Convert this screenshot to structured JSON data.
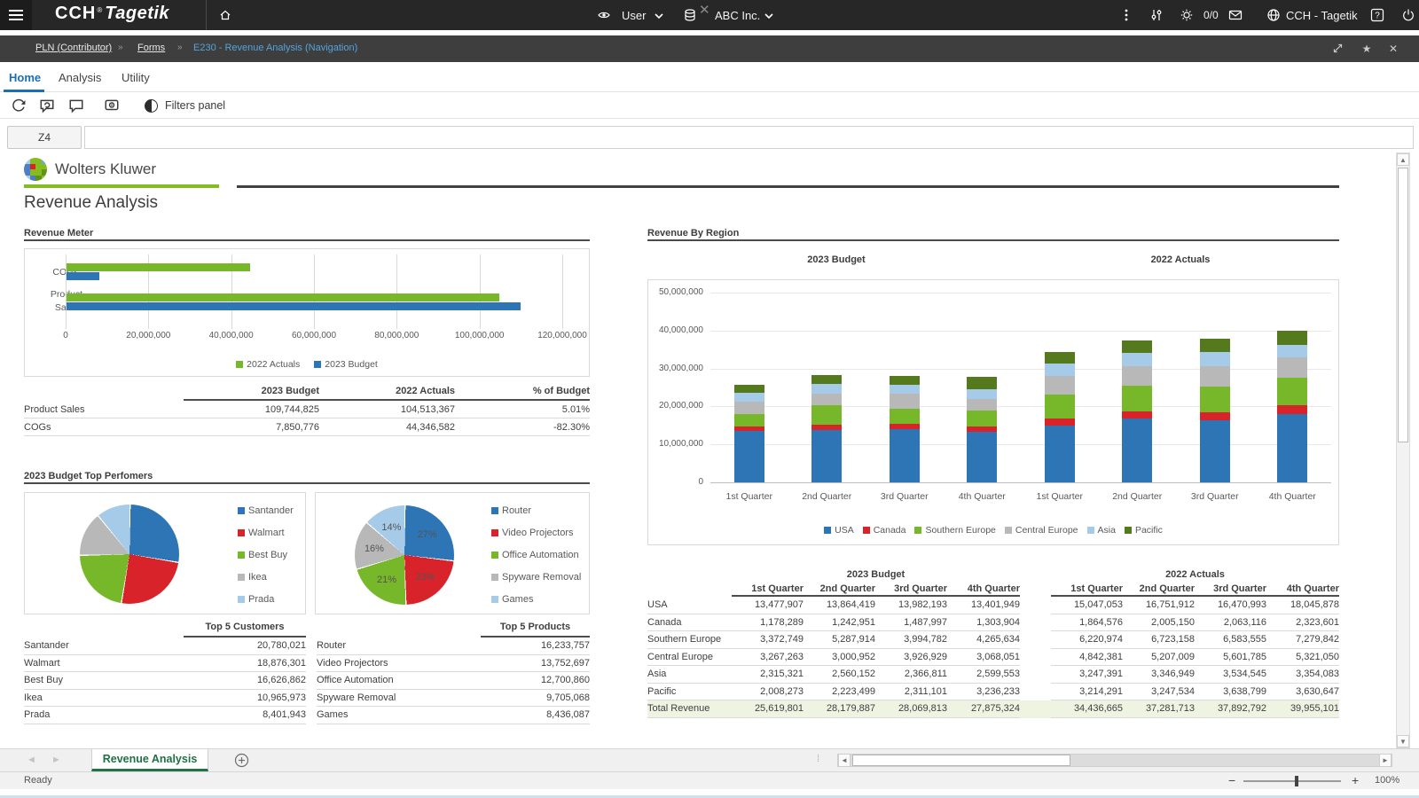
{
  "topbar": {
    "logo_cch": "CCH",
    "logo_reg": "®",
    "logo_tagetik": "Tagetik",
    "user_label": "User",
    "company_label": "ABC Inc.",
    "inbox_count": "0/0",
    "product_label": "CCH - Tagetik"
  },
  "breadcrumb": {
    "items": [
      "PLN (Contributor)",
      "Forms",
      "E230 - Revenue Analysis (Navigation)"
    ]
  },
  "tabs": [
    {
      "label": "Home",
      "active": true
    },
    {
      "label": "Analysis",
      "active": false
    },
    {
      "label": "Utility",
      "active": false
    }
  ],
  "toolbar": {
    "filters_label": "Filters panel"
  },
  "cell_ref": "Z4",
  "formula_value": "",
  "colors": {
    "accent_blue": "#1a6fb5",
    "link_blue": "#54a3dd",
    "brand_green": "#85bc20",
    "sheet_tab_green": "#217346",
    "total_row_bg": "#eef3e2"
  },
  "report": {
    "brand": "Wolters Kluwer",
    "title": "Revenue Analysis",
    "sections": {
      "revenue_meter": "Revenue Meter",
      "top_performers": "2023 Budget Top Perfomers",
      "revenue_by_region": "Revenue By Region"
    }
  },
  "meter_table": {
    "headers": [
      "2023 Budget",
      "2022 Actuals",
      "% of Budget"
    ],
    "rows": [
      {
        "label": "Product Sales",
        "values": [
          "109,744,825",
          "104,513,367",
          "5.01%"
        ]
      },
      {
        "label": "COGs",
        "values": [
          "7,850,776",
          "44,346,582",
          "-82.30%"
        ]
      }
    ]
  },
  "customers_table": {
    "header": "Top 5 Customers",
    "rows": [
      [
        "Santander",
        "20,780,021"
      ],
      [
        "Walmart",
        "18,876,301"
      ],
      [
        "Best Buy",
        "16,626,862"
      ],
      [
        "Ikea",
        "10,965,973"
      ],
      [
        "Prada",
        "8,401,943"
      ]
    ]
  },
  "products_table": {
    "header": "Top 5 Products",
    "rows": [
      [
        "Router",
        "16,233,757"
      ],
      [
        "Video Projectors",
        "13,752,697"
      ],
      [
        "Office Automation",
        "12,700,860"
      ],
      [
        "Spyware Removal",
        "9,705,068"
      ],
      [
        "Games",
        "8,436,087"
      ]
    ]
  },
  "region_table": {
    "group_headers": [
      "2023 Budget",
      "2022 Actuals"
    ],
    "quarter_headers": [
      "1st Quarter",
      "2nd Quarter",
      "3rd Quarter",
      "4th Quarter"
    ],
    "rows": [
      {
        "label": "USA",
        "budget": [
          "13,477,907",
          "13,864,419",
          "13,982,193",
          "13,401,949"
        ],
        "actuals": [
          "15,047,053",
          "16,751,912",
          "16,470,993",
          "18,045,878"
        ],
        "total": false
      },
      {
        "label": "Canada",
        "budget": [
          "1,178,289",
          "1,242,951",
          "1,487,997",
          "1,303,904"
        ],
        "actuals": [
          "1,864,576",
          "2,005,150",
          "2,063,116",
          "2,323,601"
        ],
        "total": false
      },
      {
        "label": "Southern Europe",
        "budget": [
          "3,372,749",
          "5,287,914",
          "3,994,782",
          "4,265,634"
        ],
        "actuals": [
          "6,220,974",
          "6,723,158",
          "6,583,555",
          "7,279,842"
        ],
        "total": false
      },
      {
        "label": "Central Europe",
        "budget": [
          "3,267,263",
          "3,000,952",
          "3,926,929",
          "3,068,051"
        ],
        "actuals": [
          "4,842,381",
          "5,207,009",
          "5,601,785",
          "5,321,050"
        ],
        "total": false
      },
      {
        "label": "Asia",
        "budget": [
          "2,315,321",
          "2,560,152",
          "2,366,811",
          "2,599,553"
        ],
        "actuals": [
          "3,247,391",
          "3,346,949",
          "3,534,545",
          "3,354,083"
        ],
        "total": false
      },
      {
        "label": "Pacific",
        "budget": [
          "2,008,273",
          "2,223,499",
          "2,311,101",
          "3,236,233"
        ],
        "actuals": [
          "3,214,291",
          "3,247,534",
          "3,638,799",
          "3,630,647"
        ],
        "total": false
      },
      {
        "label": "Total Revenue",
        "budget": [
          "25,619,801",
          "28,179,887",
          "28,069,813",
          "27,875,324"
        ],
        "actuals": [
          "34,436,665",
          "37,281,713",
          "37,892,792",
          "39,955,101"
        ],
        "total": true
      }
    ]
  },
  "chart_data": [
    {
      "id": "revenue_meter",
      "type": "bar",
      "orientation": "horizontal",
      "title": "Revenue Meter",
      "categories": [
        "COGs",
        "Product Sales"
      ],
      "series": [
        {
          "name": "2022 Actuals",
          "color": "#76b82a",
          "values": [
            44346582,
            104513367
          ]
        },
        {
          "name": "2023 Budget",
          "color": "#2e75b6",
          "values": [
            7850776,
            109744825
          ]
        }
      ],
      "xlim": [
        0,
        120000000
      ],
      "xticks": [
        "0",
        "20,000,000",
        "40,000,000",
        "60,000,000",
        "80,000,000",
        "100,000,000",
        "120,000,000"
      ],
      "grid": true,
      "legend_position": "bottom"
    },
    {
      "id": "top5_customers",
      "type": "pie",
      "title": "Top 5 Customers",
      "labels": [
        "Santander",
        "Walmart",
        "Best Buy",
        "Ikea",
        "Prada"
      ],
      "values": [
        20780021,
        18876301,
        16626862,
        10965973,
        8401943
      ],
      "colors": [
        "#2e75b6",
        "#d8232a",
        "#76b82a",
        "#b8b8b8",
        "#a6cbe8"
      ],
      "percent_labels": null,
      "legend_position": "right"
    },
    {
      "id": "top5_products",
      "type": "pie",
      "title": "Top 5 Products",
      "labels": [
        "Router",
        "Video Projectors",
        "Office Automation",
        "Spyware Removal",
        "Games"
      ],
      "values": [
        16233757,
        13752697,
        12700860,
        9705068,
        8436087
      ],
      "colors": [
        "#2e75b6",
        "#d8232a",
        "#76b82a",
        "#b8b8b8",
        "#a6cbe8"
      ],
      "percent_labels": [
        "27%",
        "23%",
        "21%",
        "16%",
        "14%"
      ],
      "legend_position": "right"
    },
    {
      "id": "revenue_by_region",
      "type": "stacked_bar",
      "title": "Revenue By Region",
      "group_titles": [
        "2023 Budget",
        "2022 Actuals"
      ],
      "categories": [
        "1st Quarter",
        "2nd Quarter",
        "3rd Quarter",
        "4th Quarter",
        "1st Quarter",
        "2nd Quarter",
        "3rd Quarter",
        "4th Quarter"
      ],
      "series": [
        {
          "name": "USA",
          "color": "#2e75b6",
          "values": [
            13477907,
            13864419,
            13982193,
            13401949,
            15047053,
            16751912,
            16470993,
            18045878
          ]
        },
        {
          "name": "Canada",
          "color": "#d8232a",
          "values": [
            1178289,
            1242951,
            1487997,
            1303904,
            1864576,
            2005150,
            2063116,
            2323601
          ]
        },
        {
          "name": "Southern Europe",
          "color": "#76b82a",
          "values": [
            3372749,
            5287914,
            3994782,
            4265634,
            6220974,
            6723158,
            6583555,
            7279842
          ]
        },
        {
          "name": "Central Europe",
          "color": "#b8b8b8",
          "values": [
            3267263,
            3000952,
            3926929,
            3068051,
            4842381,
            5207009,
            5601785,
            5321050
          ]
        },
        {
          "name": "Asia",
          "color": "#a6cbe8",
          "values": [
            2315321,
            2560152,
            2366811,
            2599553,
            3247391,
            3346949,
            3534545,
            3354083
          ]
        },
        {
          "name": "Pacific",
          "color": "#55791d",
          "values": [
            2008273,
            2223499,
            2311101,
            3236233,
            3214291,
            3247534,
            3638799,
            3630647
          ]
        }
      ],
      "ylim": [
        0,
        50000000
      ],
      "yticks": [
        "0",
        "10,000,000",
        "20,000,000",
        "30,000,000",
        "40,000,000",
        "50,000,000"
      ],
      "grid": true,
      "legend_position": "bottom"
    }
  ],
  "sheet": {
    "tab": "Revenue Analysis"
  },
  "statusbar": {
    "status": "Ready",
    "zoom_level": "100%"
  }
}
